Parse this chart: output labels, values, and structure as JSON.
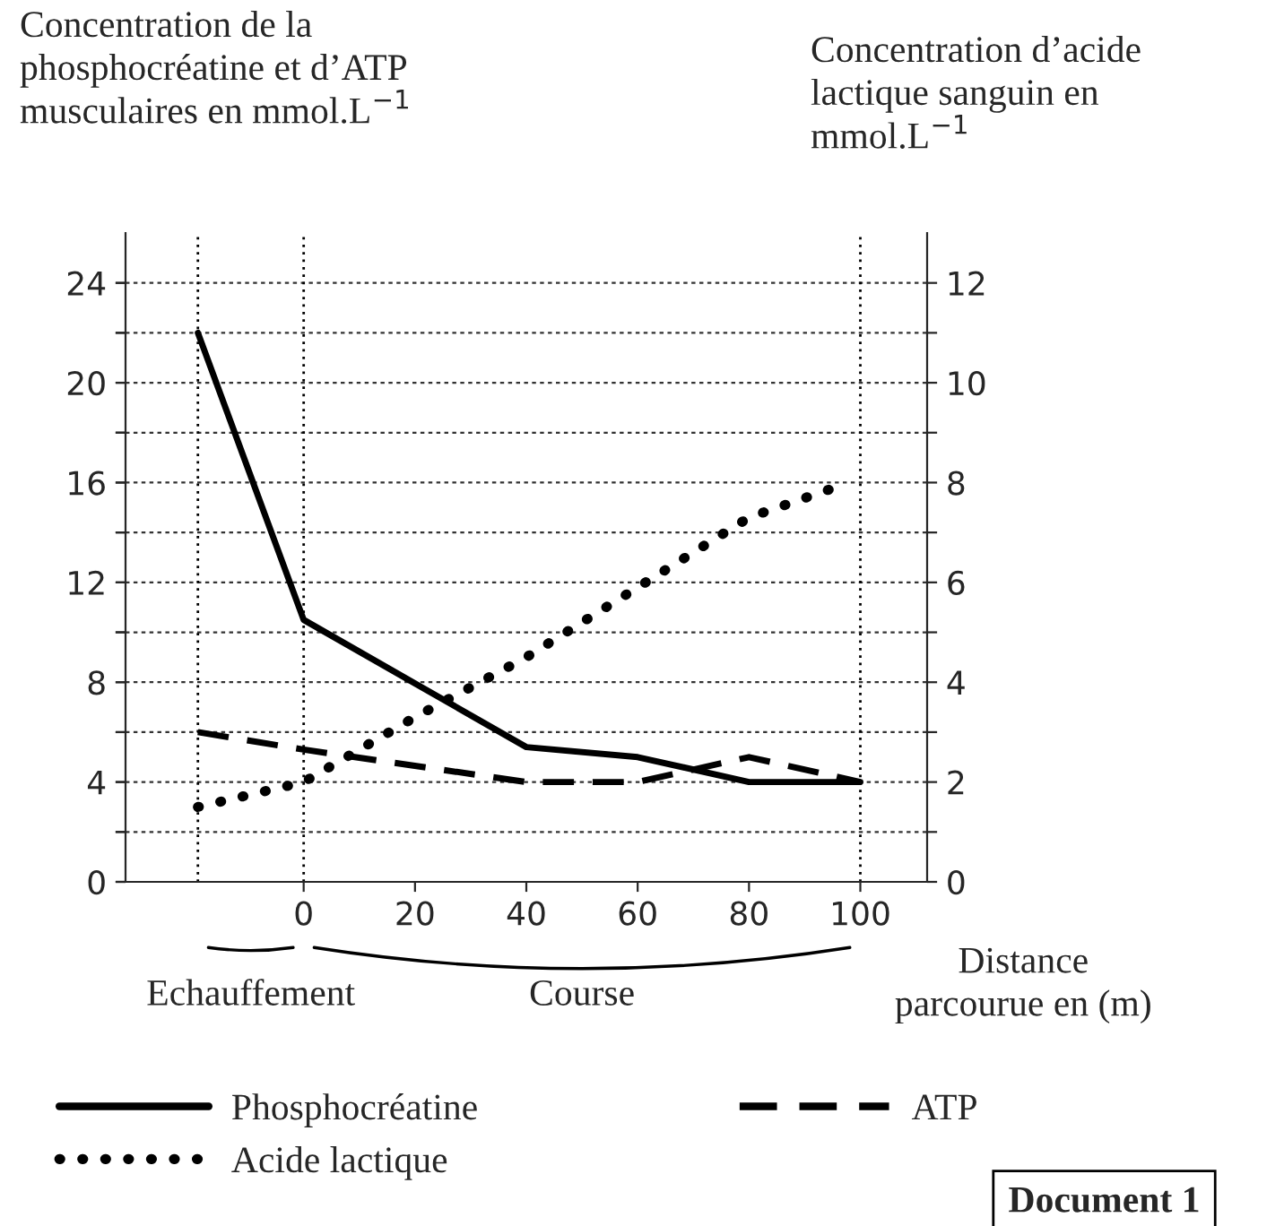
{
  "chart_data": {
    "type": "line",
    "ylabel": "Concentration de la\nphosphocréatine et d’ATP\nmusculaires en mmol.L$^{−1}$",
    "y2label": "Concentration d’acide\nlactique sanguin en\nmmol.L$^{−1}$",
    "xlabel": "Distance\nparcourue en (m)",
    "series": [
      {
        "name": "Phosphocréatine",
        "color": "#000000",
        "line_style": "solid",
        "x": [
          -19,
          0,
          40,
          60,
          80,
          100
        ],
        "values": [
          22,
          10.5,
          5.4,
          5,
          4,
          4
        ]
      },
      {
        "name": "ATP",
        "color": "#000000",
        "line_style": "dashed",
        "x": [
          -19,
          0,
          40,
          60,
          80,
          100
        ],
        "values": [
          6,
          5.3,
          4,
          4,
          5,
          4
        ]
      },
      {
        "name": "Acide lactique",
        "color": "#000000",
        "line_style": "dotted",
        "axis": "y2",
        "x": [
          -19,
          0,
          20,
          40,
          60,
          80,
          98
        ],
        "values": [
          1.5,
          2,
          3.3,
          4.5,
          5.9,
          7.3,
          8
        ]
      }
    ],
    "xlim": [
      -32,
      112
    ],
    "xticks": [
      0,
      20,
      40,
      60,
      80,
      100
    ],
    "ylim": [
      0,
      26
    ],
    "yticks": [
      0,
      {
        "value": 2,
        "label": null
      },
      4,
      {
        "value": 6,
        "label": null
      },
      8,
      {
        "value": 10,
        "label": null
      },
      12,
      {
        "value": 14,
        "label": null
      },
      16,
      {
        "value": 18,
        "label": null
      },
      20,
      {
        "value": 22,
        "label": null
      },
      24
    ],
    "y2lim": [
      0,
      13
    ],
    "y2ticks": [
      0,
      {
        "value": 1,
        "label": null
      },
      2,
      {
        "value": 3,
        "label": null
      },
      4,
      {
        "value": 5,
        "label": null
      },
      6,
      {
        "value": 7,
        "label": null
      },
      8,
      {
        "value": 9,
        "label": null
      },
      10,
      {
        "value": 11,
        "label": null
      },
      12
    ],
    "ref_lines": [
      {
        "axis": "x",
        "value": -19,
        "line_style": "dotted"
      },
      {
        "axis": "x",
        "value": 0,
        "line_style": "dotted"
      },
      {
        "axis": "x",
        "value": 100,
        "line_style": "dotted"
      }
    ],
    "annotations": [
      "Echauffement",
      "Course",
      "Document 1"
    ],
    "grid": "y",
    "legend": "bottom"
  }
}
